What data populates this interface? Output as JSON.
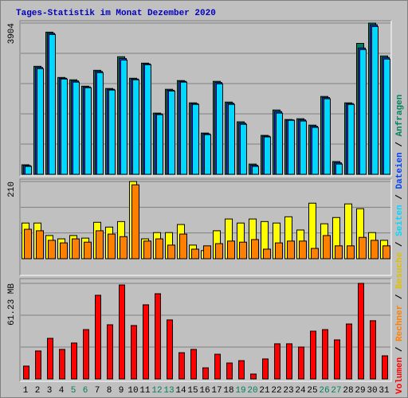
{
  "chart_data": {
    "type": "bar",
    "title": "Tages-Statistik im Monat Dezember 2020",
    "categories": [
      "1",
      "2",
      "3",
      "4",
      "5",
      "6",
      "7",
      "8",
      "9",
      "10",
      "11",
      "12",
      "13",
      "14",
      "15",
      "16",
      "17",
      "18",
      "19",
      "20",
      "21",
      "22",
      "23",
      "24",
      "25",
      "26",
      "27",
      "28",
      "29",
      "30",
      "31"
    ],
    "category_colors": [
      "#000000",
      "#000000",
      "#000000",
      "#000000",
      "#00805c",
      "#00805c",
      "#000000",
      "#000000",
      "#000000",
      "#000000",
      "#000000",
      "#00805c",
      "#00805c",
      "#000000",
      "#000000",
      "#000000",
      "#000000",
      "#000000",
      "#00805c",
      "#00805c",
      "#000000",
      "#000000",
      "#000000",
      "#000000",
      "#000000",
      "#00805c",
      "#00805c",
      "#000000",
      "#000000",
      "#000000",
      "#000000"
    ],
    "panels": [
      {
        "ylim": [
          0,
          3904
        ],
        "yticks": [
          3904
        ],
        "series": [
          {
            "name": "Anfragen",
            "color": "#00805c",
            "values": [
              246,
              2788,
              3670,
              2500,
              2440,
              2275,
              2685,
              2215,
              3035,
              2480,
              2870,
              1580,
              2195,
              2420,
              1845,
              1065,
              2400,
              1865,
              1355,
              265,
              1005,
              1660,
              1415,
              1435,
              1270,
              2010,
              330,
              1845,
              3380,
              3904,
              3055
            ]
          },
          {
            "name": "Dateien",
            "color": "#0040ff",
            "values": [
              225,
              2758,
              3640,
              2480,
              2410,
              2255,
              2655,
              2195,
              2990,
              2460,
              2850,
              1560,
              2170,
              2400,
              1825,
              1045,
              2370,
              1835,
              1320,
              235,
              985,
              1620,
              1405,
              1405,
              1240,
              1980,
              298,
              1825,
              3260,
              3860,
              3015
            ]
          },
          {
            "name": "Seiten",
            "color": "#00d8ff",
            "values": [
              205,
              2727,
              3610,
              2460,
              2380,
              2235,
              2625,
              2175,
              2950,
              2440,
              2830,
              1540,
              2150,
              2380,
              1805,
              1025,
              2335,
              1805,
              1290,
              205,
              965,
              1580,
              1395,
              1375,
              1210,
              1950,
              265,
              1805,
              3220,
              3815,
              2975
            ]
          }
        ]
      },
      {
        "ylim": [
          0,
          210
        ],
        "yticks": [
          210
        ],
        "series": [
          {
            "name": "Besuche",
            "color": "#ffff00",
            "values": [
              97,
              97,
              63,
              54,
              63,
              56,
              99,
              86,
              101,
              210,
              54,
              71,
              71,
              93,
              37,
              22,
              76,
              108,
              97,
              108,
              101,
              97,
              114,
              78,
              151,
              95,
              112,
              149,
              136,
              71,
              50
            ]
          },
          {
            "name": "Rechner",
            "color": "#ff8000",
            "values": [
              80,
              76,
              50,
              43,
              54,
              45,
              76,
              67,
              60,
              201,
              48,
              54,
              37,
              67,
              26,
              35,
              41,
              48,
              45,
              52,
              26,
              43,
              48,
              48,
              28,
              63,
              35,
              35,
              58,
              50,
              35
            ]
          }
        ]
      },
      {
        "ylim": [
          0,
          61.23
        ],
        "yticks": [
          {
            "value": 61.23,
            "label": "61.23 MB"
          }
        ],
        "series": [
          {
            "name": "Volumen",
            "color": "#ff0000",
            "values": [
              8.2,
              17.9,
              26.0,
              18.9,
              23.0,
              31.6,
              53.6,
              34.7,
              60.2,
              34.2,
              47.5,
              54.6,
              37.8,
              16.8,
              18.9,
              7.1,
              15.8,
              10.2,
              11.7,
              3.1,
              12.8,
              22.5,
              22.5,
              20.4,
              30.6,
              31.6,
              25.0,
              35.2,
              61.23,
              37.3,
              14.8
            ]
          }
        ]
      }
    ]
  }
}
